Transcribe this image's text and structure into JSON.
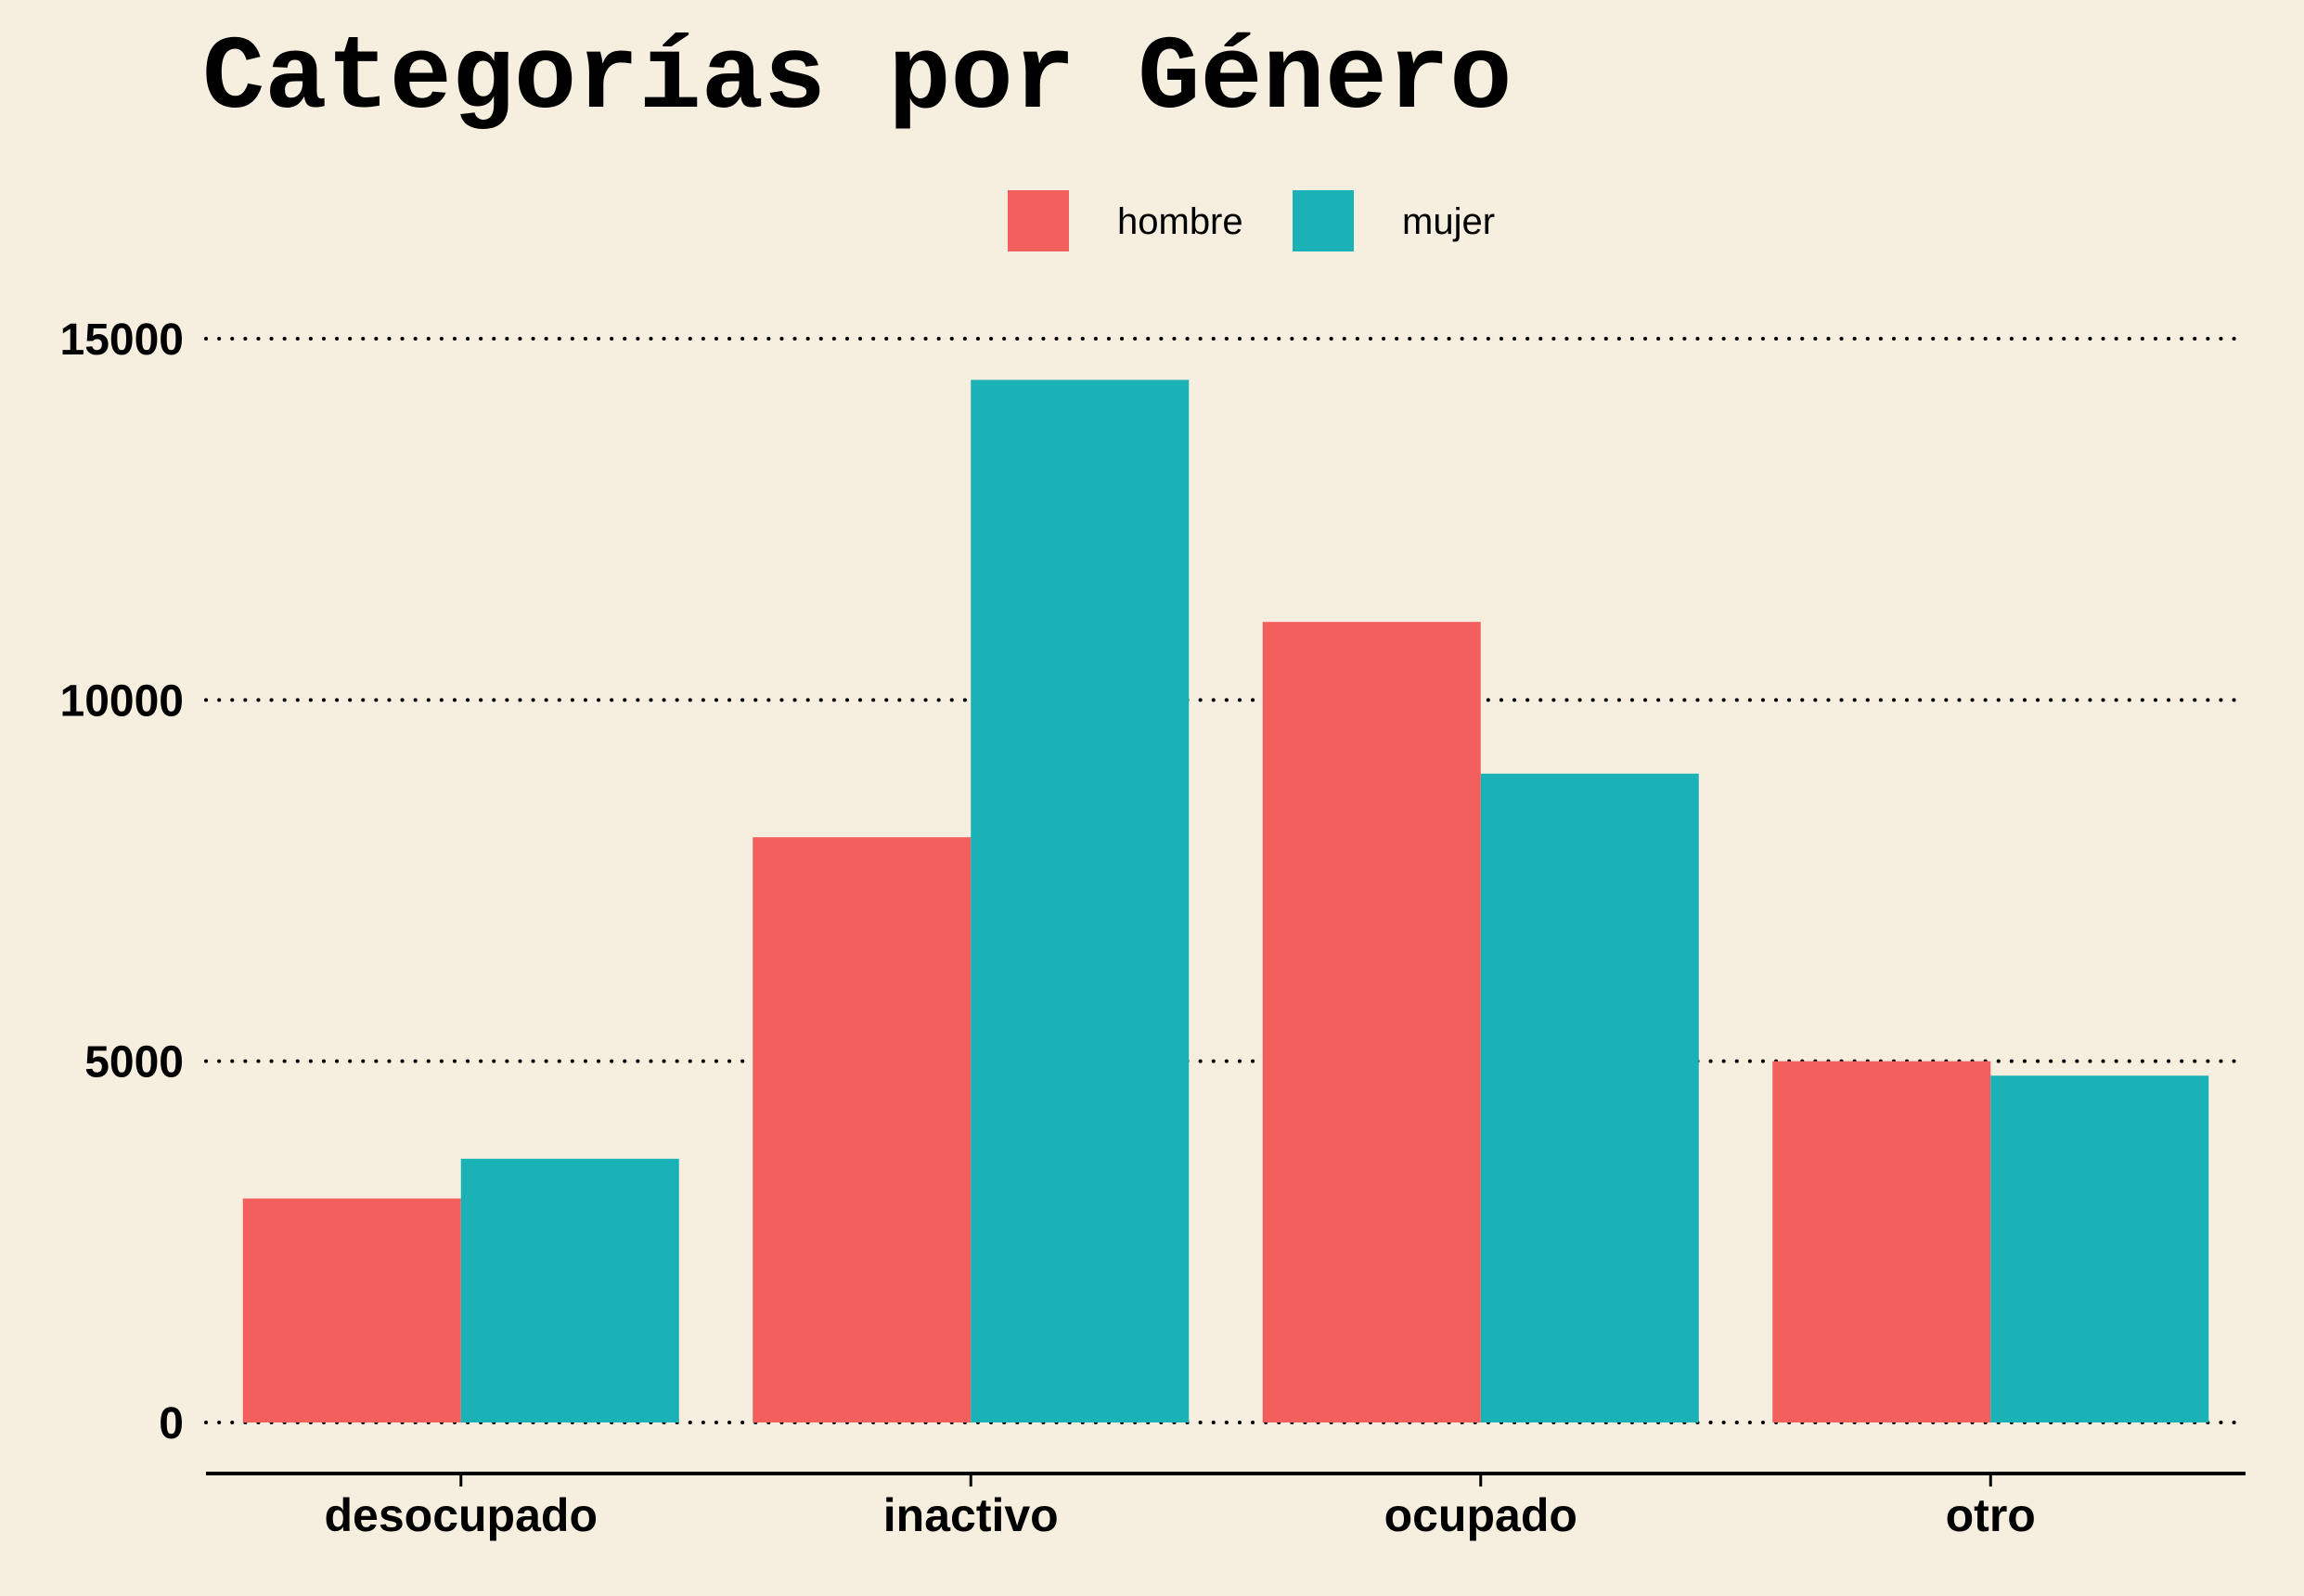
{
  "chart_data": {
    "type": "bar",
    "title": "Categorías por Género",
    "xlabel": "",
    "ylabel": "",
    "categories": [
      "desocupado",
      "inactivo",
      "ocupado",
      "otro"
    ],
    "series": [
      {
        "name": "hombre",
        "color": "#f25f5c",
        "values": [
          3100,
          8100,
          11080,
          5000
        ]
      },
      {
        "name": "mujer",
        "color": "#1ab2b6",
        "values": [
          3650,
          14430,
          8980,
          4800
        ]
      }
    ],
    "ylim": [
      0,
      15000
    ],
    "yticks": [
      "0",
      "5000",
      "10000",
      "15000"
    ],
    "grid": "horizontal dotted",
    "legend_position": "top-center"
  }
}
